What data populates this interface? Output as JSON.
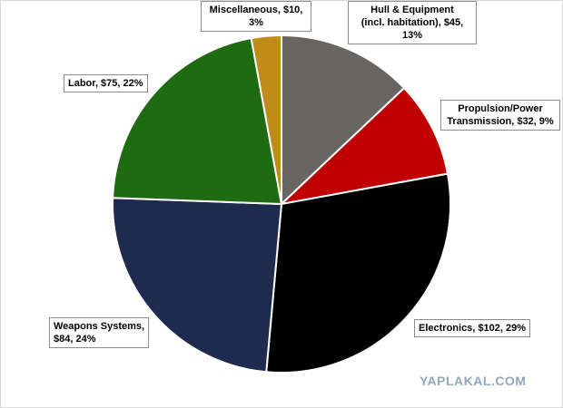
{
  "chart_data": {
    "type": "pie",
    "title": "",
    "currency": "$",
    "slices": [
      {
        "key": "hull",
        "label": "Hull & Equipment\n(incl. habitation), $45,\n13%",
        "value": 45,
        "percent": 13,
        "color": "#696563"
      },
      {
        "key": "propulsion",
        "label": "Propulsion/Power\nTransmission, $32, 9%",
        "value": 32,
        "percent": 9,
        "color": "#c00000"
      },
      {
        "key": "electronics",
        "label": "Electronics, $102, 29%",
        "value": 102,
        "percent": 29,
        "color": "#000000"
      },
      {
        "key": "weapons",
        "label": "Weapons Systems,\n$84, 24%",
        "value": 84,
        "percent": 24,
        "color": "#1f2a4f"
      },
      {
        "key": "labor",
        "label": "Labor, $75, 22%",
        "value": 75,
        "percent": 22,
        "color": "#1e6b12"
      },
      {
        "key": "misc",
        "label": "Miscellaneous, $10,\n3%",
        "value": 10,
        "percent": 3,
        "color": "#bf8c1a"
      }
    ],
    "start_angle": "12 o'clock",
    "direction": "clockwise",
    "legend": "none",
    "slice_border_color": "#ffffff"
  },
  "watermark": "YAPLAKAL.COM"
}
